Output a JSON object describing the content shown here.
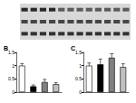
{
  "blot": {
    "rows": 3,
    "lanes": 12
  },
  "chart_data": [
    {
      "type": "bar",
      "panel": "B",
      "categories": [
        null,
        null,
        null,
        null
      ],
      "values": [
        1.0,
        0.22,
        0.38,
        0.3
      ],
      "errors": [
        0.08,
        0.05,
        0.1,
        0.06
      ],
      "colors": [
        "#ffffff",
        "#000000",
        "#808080",
        "#c0c0c0"
      ],
      "ylim": [
        0,
        1.5
      ],
      "yticks": [
        0,
        0.5,
        1,
        1.5
      ],
      "grid": false
    },
    {
      "type": "bar",
      "panel": "C",
      "categories": [
        null,
        null,
        null,
        null
      ],
      "values": [
        1.0,
        1.05,
        1.3,
        0.95
      ],
      "errors": [
        0.1,
        0.2,
        0.15,
        0.12
      ],
      "colors": [
        "#ffffff",
        "#000000",
        "#808080",
        "#c0c0c0"
      ],
      "ylim": [
        0,
        1.5
      ],
      "yticks": [
        0,
        0.5,
        1,
        1.5
      ],
      "grid": false
    }
  ]
}
